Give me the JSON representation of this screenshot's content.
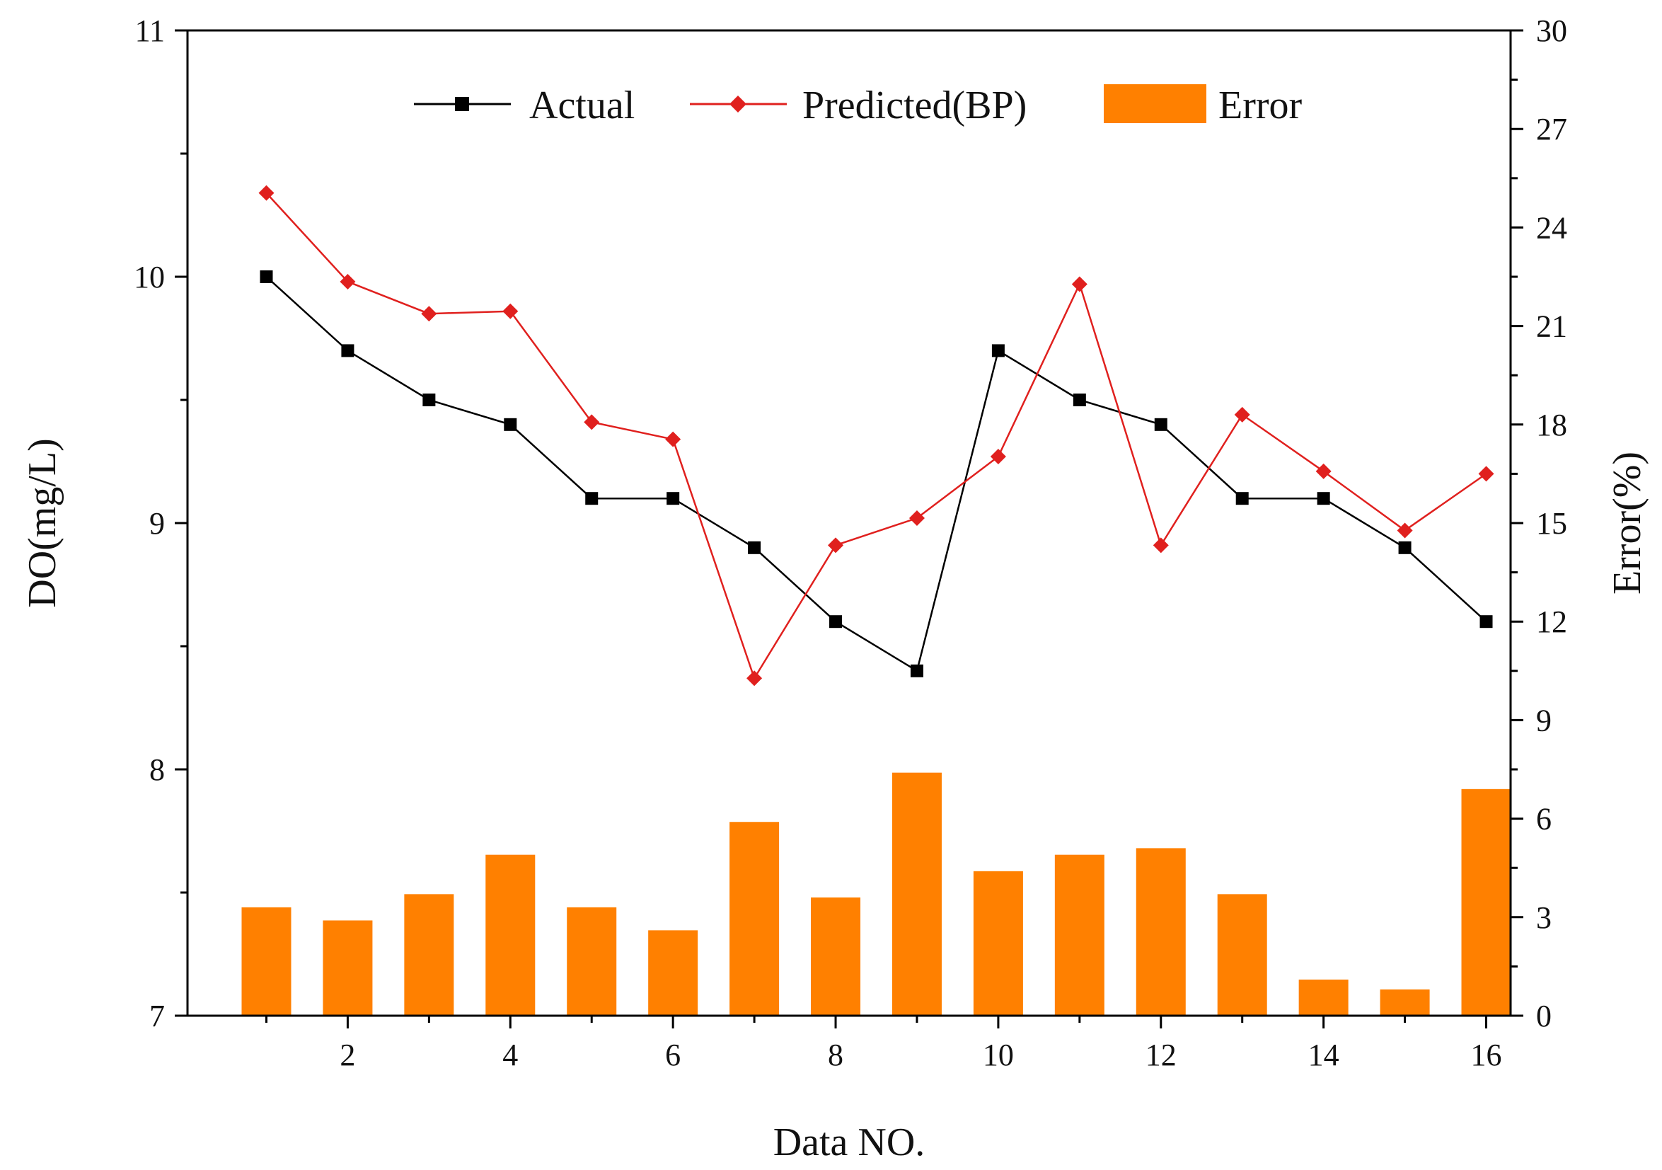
{
  "chart_data": {
    "type": "bar+line",
    "xlabel": "Data NO.",
    "ylabel_left": "DO(mg/L)",
    "ylabel_right": "Error(%)",
    "x": [
      1,
      2,
      3,
      4,
      5,
      6,
      7,
      8,
      9,
      10,
      11,
      12,
      13,
      14,
      15,
      16
    ],
    "xlim": [
      0.03,
      16.3
    ],
    "ylim_left": [
      7,
      11
    ],
    "ylim_right": [
      0,
      30
    ],
    "x_ticks": [
      2,
      4,
      6,
      8,
      10,
      12,
      14,
      16
    ],
    "x_tick_labels": [
      "2",
      "4",
      "6",
      "8",
      "10",
      "12",
      "14",
      "16"
    ],
    "y_left_ticks": [
      7,
      8,
      9,
      10,
      11
    ],
    "y_left_tick_labels": [
      "7",
      "8",
      "9",
      "10",
      "11"
    ],
    "y_right_ticks": [
      0,
      3,
      6,
      9,
      12,
      15,
      18,
      21,
      24,
      27,
      30
    ],
    "y_right_tick_labels": [
      "0",
      "3",
      "6",
      "9",
      "12",
      "15",
      "18",
      "21",
      "24",
      "27",
      "30"
    ],
    "series": [
      {
        "name": "Actual",
        "kind": "line",
        "axis": "left",
        "color": "#000000",
        "marker": "square",
        "values": [
          10.0,
          9.7,
          9.5,
          9.4,
          9.1,
          9.1,
          8.9,
          8.6,
          8.4,
          9.7,
          9.5,
          9.4,
          9.1,
          9.1,
          8.9,
          8.6
        ]
      },
      {
        "name": "Predicted(BP)",
        "kind": "line",
        "axis": "left",
        "color": "#e0201e",
        "marker": "diamond",
        "values": [
          10.34,
          9.98,
          9.85,
          9.86,
          9.41,
          9.34,
          8.37,
          8.91,
          9.02,
          9.27,
          9.97,
          8.91,
          9.44,
          9.21,
          8.97,
          9.2
        ]
      },
      {
        "name": "Error",
        "kind": "bar",
        "axis": "right",
        "color": "#ff8000",
        "values": [
          3.3,
          2.9,
          3.7,
          4.9,
          3.3,
          2.6,
          5.9,
          3.6,
          7.4,
          4.4,
          4.9,
          5.1,
          3.7,
          1.1,
          0.8,
          6.9
        ]
      }
    ],
    "legend": [
      "Actual",
      "Predicted(BP)",
      "Error"
    ],
    "legend_position": "top-center",
    "grid": false
  }
}
